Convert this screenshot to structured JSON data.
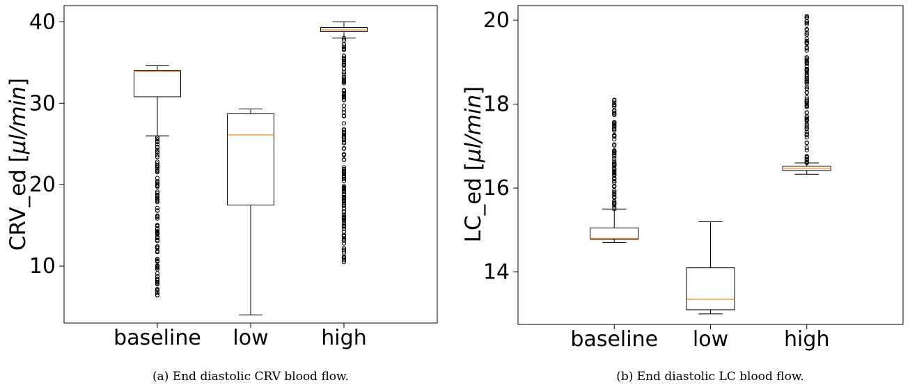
{
  "chart_data": [
    {
      "type": "box",
      "caption": "(a) End diastolic CRV blood flow.",
      "ylabel": "CRV_ed [",
      "ylabel_unit": "μl/min",
      "ylabel_close": "]",
      "categories": [
        "baseline",
        "low",
        "high"
      ],
      "ylim": [
        3.0,
        42.0
      ],
      "yticks": [
        10,
        20,
        30,
        40
      ],
      "boxes": [
        {
          "name": "baseline",
          "whisker_low": 26.0,
          "q1": 30.8,
          "median": 33.9,
          "q3": 34.0,
          "whisker_high": 34.6,
          "outlier_range": [
            6.4,
            25.8
          ]
        },
        {
          "name": "low",
          "whisker_low": 4.0,
          "q1": 17.5,
          "median": 26.1,
          "q3": 28.7,
          "whisker_high": 29.3,
          "outlier_range": null
        },
        {
          "name": "high",
          "whisker_low": 38.0,
          "q1": 38.8,
          "median": 39.0,
          "q3": 39.3,
          "whisker_high": 40.0,
          "outlier_range": [
            10.5,
            38.0
          ]
        }
      ]
    },
    {
      "type": "box",
      "caption": "(b) End diastolic LC blood flow.",
      "ylabel": "LC_ed [",
      "ylabel_unit": "μl/min",
      "ylabel_close": "]",
      "categories": [
        "baseline",
        "low",
        "high"
      ],
      "ylim": [
        12.75,
        20.35
      ],
      "yticks": [
        14,
        16,
        18,
        20
      ],
      "boxes": [
        {
          "name": "baseline",
          "whisker_low": 14.7,
          "q1": 14.78,
          "median": 14.8,
          "q3": 15.05,
          "whisker_high": 15.5,
          "outlier_range": [
            15.5,
            18.1
          ]
        },
        {
          "name": "low",
          "whisker_low": 13.0,
          "q1": 13.1,
          "median": 13.35,
          "q3": 14.1,
          "whisker_high": 15.2,
          "outlier_range": null
        },
        {
          "name": "high",
          "whisker_low": 16.33,
          "q1": 16.42,
          "median": 16.47,
          "q3": 16.52,
          "whisker_high": 16.6,
          "outlier_range": [
            16.6,
            20.1
          ]
        }
      ]
    }
  ],
  "colors": {
    "median": "#ff7f0e",
    "box": "#000000"
  }
}
